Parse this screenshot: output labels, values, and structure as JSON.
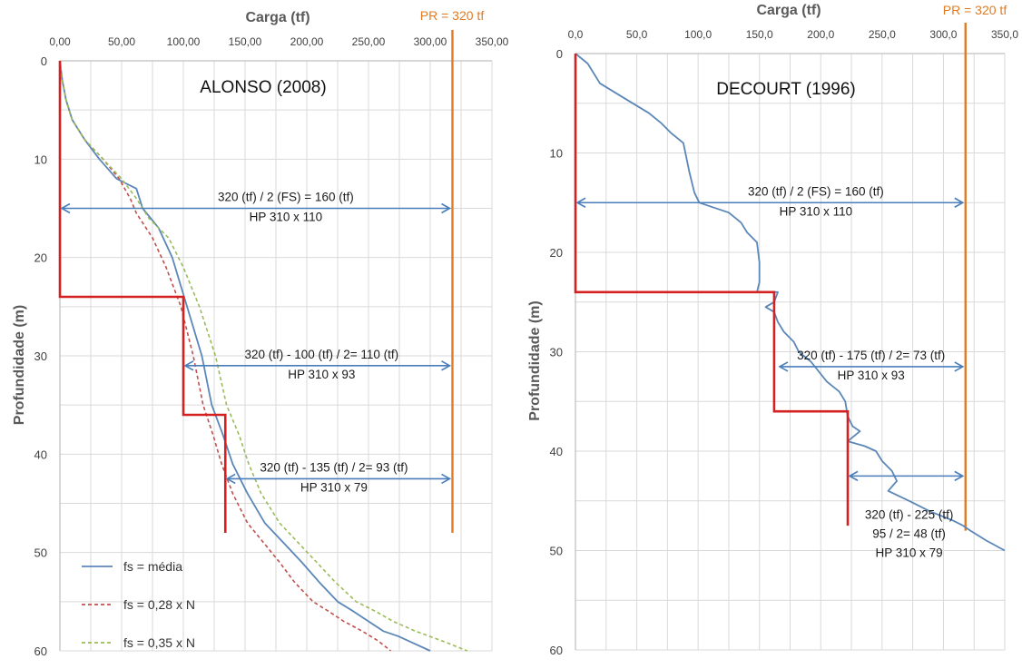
{
  "colors": {
    "grid": "#d9d9d9",
    "axis": "#bfbfbf",
    "tick_text": "#404040",
    "axis_title": "#595959",
    "pr_line": "#e07b24",
    "step_line": "#d42020",
    "arrow": "#4a7ebb",
    "series_media": "#5b87b8",
    "series_028": "#c0504d",
    "series_035": "#9bbb59"
  },
  "chart_data": [
    {
      "type": "line",
      "panel": "left",
      "x_axis_title": "Carga (tf)",
      "y_axis_title": "Profundidade (m)",
      "xlim": [
        0,
        350
      ],
      "ylim": [
        0,
        60
      ],
      "y_inverted": true,
      "x_axis_position": "top",
      "grid": true,
      "x_tick_labels": [
        "0,00",
        "50,00",
        "100,00",
        "150,00",
        "200,00",
        "250,00",
        "300,00",
        "350,00"
      ],
      "y_tick_labels": [
        "0",
        "10",
        "20",
        "30",
        "40",
        "50",
        "60"
      ],
      "pr_line": {
        "label": "PR = 320 tf",
        "x": 318,
        "y_range": [
          0,
          48
        ]
      },
      "annotation_title": "ALONSO (2008)",
      "series": [
        {
          "name": "fs = média",
          "style": "solid",
          "x": [
            0,
            2,
            5,
            10,
            20,
            32,
            46,
            62,
            67,
            80,
            91,
            103,
            115,
            123,
            132,
            140,
            152,
            166,
            181,
            196,
            210,
            225,
            238,
            250,
            262,
            274,
            286,
            300
          ],
          "y": [
            0,
            2,
            4,
            6,
            8,
            10,
            12,
            13,
            15,
            17,
            20,
            25,
            30,
            35,
            38,
            41,
            44,
            47,
            49,
            51,
            53,
            55,
            56,
            57,
            58,
            58.5,
            59.2,
            60
          ]
        },
        {
          "name": "fs = 0,28 x N",
          "style": "dashed",
          "x": [
            0,
            2,
            5,
            10,
            20,
            35,
            48,
            57,
            62,
            75,
            86,
            98,
            108,
            116,
            124,
            131,
            140,
            152,
            165,
            178,
            190,
            205,
            218,
            230,
            245,
            258,
            268
          ],
          "y": [
            0,
            2,
            4,
            6,
            8,
            10,
            12,
            14,
            15.5,
            18,
            21,
            25,
            30,
            35,
            38,
            41,
            44,
            47,
            49,
            51,
            53,
            55,
            56,
            57,
            58,
            59,
            60
          ]
        },
        {
          "name": "fs = 0,35 x N",
          "style": "dashed",
          "x": [
            0,
            2,
            5,
            10,
            20,
            35,
            50,
            62,
            72,
            88,
            100,
            113,
            126,
            135,
            145,
            153,
            163,
            178,
            193,
            208,
            223,
            240,
            256,
            270,
            288,
            310,
            330
          ],
          "y": [
            0,
            2,
            4,
            6,
            8,
            10,
            12,
            14,
            16,
            18,
            21,
            25,
            30,
            35,
            38,
            41,
            44,
            47,
            49,
            51,
            53,
            55,
            56,
            57,
            58,
            59,
            60
          ]
        }
      ],
      "step_line": {
        "x": [
          0,
          0,
          100,
          100,
          134,
          134
        ],
        "y": [
          0,
          24,
          24,
          36,
          36,
          48
        ]
      },
      "arrows": [
        {
          "y": 15,
          "x_range": [
            0,
            318
          ],
          "label_lines": [
            "320 (tf) / 2 (FS) = 160 (tf)",
            "HP 310 x 110"
          ],
          "label_x": 183
        },
        {
          "y": 31,
          "x_range": [
            100,
            318
          ],
          "label_lines": [
            "320 (tf) - 100 (tf) / 2= 110 (tf)",
            "HP 310 x 93"
          ],
          "label_x": 212
        },
        {
          "y": 42.5,
          "x_range": [
            134,
            318
          ],
          "label_lines": [
            "320 (tf) - 135 (tf) / 2= 93 (tf)",
            "HP 310 x 79"
          ],
          "label_x": 222
        }
      ],
      "legend_position": "bottom-left"
    },
    {
      "type": "line",
      "panel": "right",
      "x_axis_title": "Carga (tf)",
      "y_axis_title": "Profundidade (m)",
      "xlim": [
        0,
        350
      ],
      "ylim": [
        0,
        60
      ],
      "y_inverted": true,
      "x_axis_position": "top",
      "grid": true,
      "x_tick_labels": [
        "0,0",
        "50,0",
        "100,0",
        "150,0",
        "200,0",
        "250,0",
        "300,0",
        "350,0"
      ],
      "y_tick_labels": [
        "0",
        "10",
        "20",
        "30",
        "40",
        "50",
        "60"
      ],
      "pr_line": {
        "label": "PR = 320 tf",
        "x": 318,
        "y_range": [
          0,
          48
        ]
      },
      "annotation_title": "DECOURT (1996)",
      "series": [
        {
          "name": "",
          "style": "solid",
          "x": [
            0,
            10,
            20,
            40,
            60,
            70,
            78,
            88,
            93,
            97,
            101,
            125,
            135,
            140,
            148,
            150,
            150,
            148,
            152,
            165,
            162,
            155,
            162,
            165,
            170,
            178,
            182,
            192,
            205,
            215,
            220,
            222,
            226,
            232,
            222,
            236,
            245,
            250,
            258,
            262,
            255,
            272,
            280,
            288,
            298,
            308,
            316,
            322,
            335,
            350
          ],
          "y": [
            0,
            1,
            3,
            4.5,
            6,
            7,
            8,
            9,
            12,
            14,
            15,
            16,
            17,
            18,
            19,
            21,
            23,
            24,
            24,
            24,
            25,
            25.5,
            26,
            27,
            28,
            29,
            30,
            31,
            33,
            34,
            35,
            36.5,
            37.5,
            38,
            39,
            39.5,
            40,
            41,
            42,
            43,
            44,
            45,
            45.5,
            46,
            46.5,
            47,
            47.5,
            48,
            49,
            50
          ]
        }
      ],
      "step_line": {
        "x": [
          0,
          0,
          162,
          162,
          222,
          222
        ],
        "y": [
          0,
          24,
          24,
          36,
          36,
          47.5
        ]
      },
      "arrows": [
        {
          "y": 15,
          "x_range": [
            0,
            318
          ],
          "label_lines": [
            "320 (tf) / 2 (FS) = 160 (tf)",
            "HP 310 x 110"
          ],
          "label_x": 196
        },
        {
          "y": 31.5,
          "x_range": [
            165,
            318
          ],
          "label_lines": [
            "320 (tf) - 175 (tf) / 2= 73 (tf)",
            "HP 310 x 93"
          ],
          "label_x": 241
        },
        {
          "y": 42.5,
          "x_range": [
            222,
            318
          ],
          "label_lines": [],
          "label_x": 0
        }
      ],
      "extra_annotation": {
        "label_lines": [
          "320 (tf) - 225 (tf)",
          "95 / 2= 48 (tf)",
          "HP 310 x 79"
        ],
        "x": 272,
        "y": 46
      }
    }
  ]
}
